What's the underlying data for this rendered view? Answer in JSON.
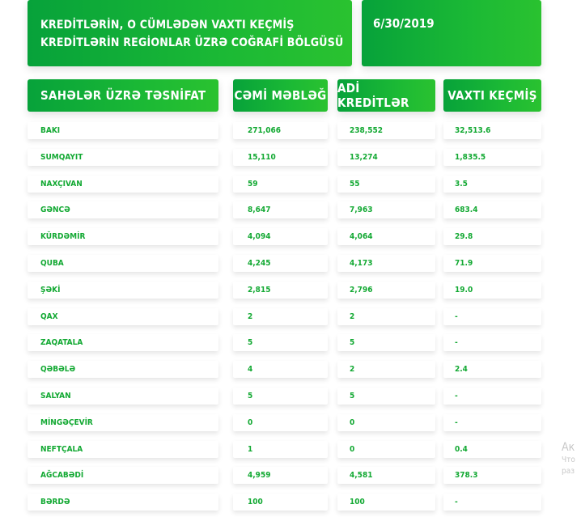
{
  "header": {
    "title": "KREDİTLƏRİN, O CÜMLƏDƏN VAXTI KEÇMİŞ KREDİTLƏRİN REGİONLAR ÜZRƏ COĞRAFİ BÖLGÜSÜ",
    "date": "6/30/2019"
  },
  "columns": [
    "SAHƏLƏR ÜZRƏ TƏSNİFAT",
    "CƏMİ MƏBLƏĞ",
    "ADİ KREDİTLƏR",
    "VAXTI KEÇMİŞ"
  ],
  "rows": [
    [
      "BAKI",
      "271,066",
      "238,552",
      "32,513.6"
    ],
    [
      "SUMQAYIT",
      "15,110",
      "13,274",
      "1,835.5"
    ],
    [
      "NAXÇIVAN",
      "59",
      "55",
      "3.5"
    ],
    [
      "GƏNCƏ",
      "8,647",
      "7,963",
      "683.4"
    ],
    [
      "KÜRDƏMİR",
      "4,094",
      "4,064",
      "29.8"
    ],
    [
      "QUBA",
      "4,245",
      "4,173",
      "71.9"
    ],
    [
      "ŞƏKİ",
      "2,815",
      "2,796",
      "19.0"
    ],
    [
      "QAX",
      "2",
      "2",
      "-"
    ],
    [
      "ZAQATALA",
      "5",
      "5",
      "-"
    ],
    [
      "QƏBƏLƏ",
      "4",
      "2",
      "2.4"
    ],
    [
      "SALYAN",
      "5",
      "5",
      "-"
    ],
    [
      "MİNGƏÇEVİR",
      "0",
      "0",
      "-"
    ],
    [
      "NEFTÇALA",
      "1",
      "0",
      "0.4"
    ],
    [
      "AĞCABƏDİ",
      "4,959",
      "4,581",
      "378.3"
    ],
    [
      "BƏRDƏ",
      "100",
      "100",
      "-"
    ]
  ],
  "overlay": {
    "line1": "Ак",
    "line2": "Что",
    "line3": "раз"
  },
  "colors": {
    "accent_green": "#13a933",
    "header_gradient_start": "#07a23a",
    "header_gradient_end": "#2ac230"
  }
}
